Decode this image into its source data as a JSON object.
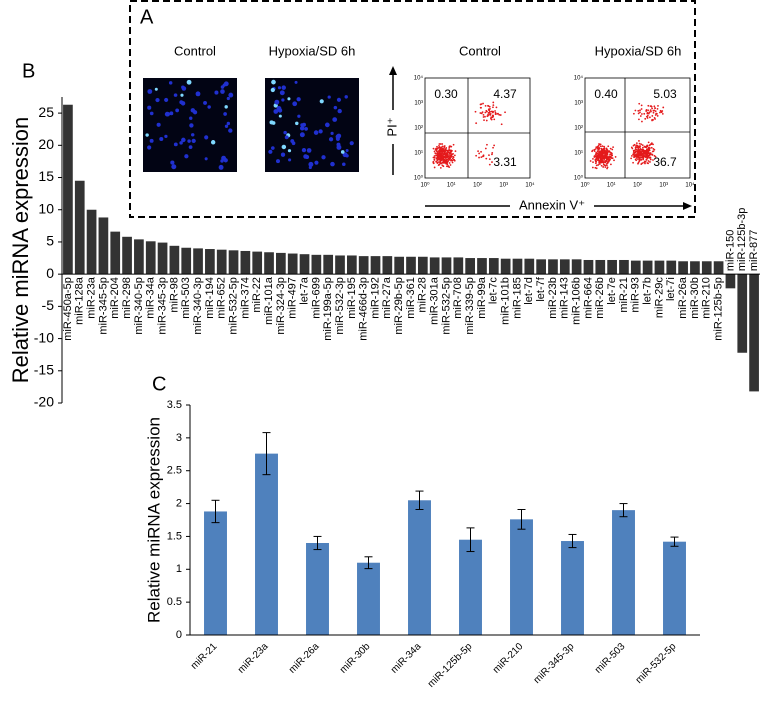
{
  "panel_a": {
    "label": "A",
    "image_titles": [
      "Control",
      "Hypoxia/SD 6h"
    ],
    "flow_titles": [
      "Control",
      "Hypoxia/SD 6h"
    ],
    "flow_quadrants": [
      [
        "0.30",
        "4.37",
        "3.31"
      ],
      [
        "0.40",
        "5.03",
        "36.7"
      ]
    ],
    "flow_axis_ticks": [
      "10⁰",
      "10¹",
      "10²",
      "10³",
      "10⁴"
    ],
    "y_label": "PI⁺",
    "x_label": "Annexin V⁺"
  },
  "chart_data": [
    {
      "type": "bar",
      "panel_label": "B",
      "y_label": "Relative miRNA expression",
      "categories": [
        "miR-450a-5p",
        "miR-128a",
        "miR-23a",
        "miR-345-5p",
        "miR-204",
        "miR-298",
        "miR-340-5p",
        "miR-34a",
        "miR-345-3p",
        "miR-98",
        "miR-503",
        "miR-340-3p",
        "miR-194",
        "miR-652",
        "miR-532-5p",
        "miR-374",
        "miR-22",
        "miR-101a",
        "miR-324-3p",
        "miR-497",
        "let-7a",
        "miR-699",
        "miR-199a-5p",
        "miR-532-3p",
        "miR-195",
        "miR-466d-3p",
        "miR-192",
        "miR-27a",
        "miR-29b-5p",
        "miR-361",
        "miR-28",
        "miR-301a",
        "miR-532-5p",
        "miR-708",
        "miR-339-5p",
        "miR-99a",
        "let-7c",
        "miR-101b",
        "miR-185",
        "let-7d",
        "let-7f",
        "miR-23b",
        "miR-143",
        "miR-106b",
        "miR-664",
        "miR-26b",
        "let-7e",
        "miR-21",
        "miR-93",
        "let-7b",
        "miR-29c",
        "let-7i",
        "miR-26a",
        "miR-30b",
        "miR-210",
        "miR-125b-5p",
        "miR-150",
        "miR-125b-3p",
        "miR-877"
      ],
      "values": [
        26.3,
        14.5,
        10,
        8.8,
        6.6,
        5.8,
        5.4,
        5.1,
        4.9,
        4.4,
        4.1,
        4.0,
        3.9,
        3.8,
        3.7,
        3.6,
        3.5,
        3.4,
        3.3,
        3.2,
        3.1,
        3.0,
        3.0,
        2.9,
        2.9,
        2.8,
        2.8,
        2.8,
        2.7,
        2.7,
        2.7,
        2.6,
        2.6,
        2.6,
        2.5,
        2.5,
        2.5,
        2.4,
        2.4,
        2.4,
        2.3,
        2.3,
        2.3,
        2.3,
        2.2,
        2.2,
        2.2,
        2.2,
        2.1,
        2.1,
        2.1,
        2.1,
        2.0,
        2.0,
        2.0,
        2.0,
        -2.2,
        -12.2,
        -18.2
      ],
      "color": "#333333",
      "ylim": [
        -20,
        27.5
      ],
      "yticks": [
        -20,
        -15,
        -10,
        -5,
        0,
        5,
        10,
        15,
        20,
        25
      ]
    },
    {
      "type": "bar",
      "panel_label": "C",
      "y_label": "Relative miRNA expression",
      "categories": [
        "miR-21",
        "miR-23a",
        "miR-26a",
        "miR-30b",
        "miR-34a",
        "miR-125b-5p",
        "miR-210",
        "miR-345-3p",
        "miR-503",
        "miR-532-5p"
      ],
      "values": [
        1.88,
        2.76,
        1.4,
        1.1,
        2.05,
        1.45,
        1.76,
        1.43,
        1.9,
        1.42
      ],
      "errors": [
        0.17,
        0.32,
        0.1,
        0.09,
        0.14,
        0.18,
        0.15,
        0.1,
        0.1,
        0.07
      ],
      "color": "#4f81bd",
      "ylim": [
        0,
        3.5
      ],
      "yticks": [
        0,
        0.5,
        1,
        1.5,
        2,
        2.5,
        3,
        3.5
      ]
    }
  ]
}
